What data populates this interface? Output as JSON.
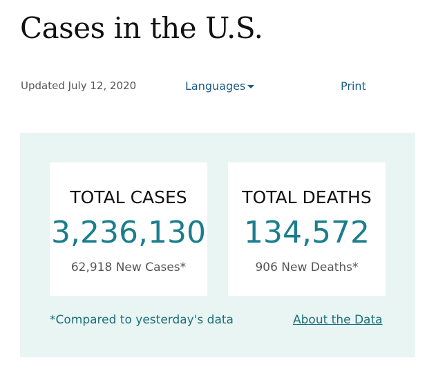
{
  "header": {
    "title": "Cases in the U.S.",
    "updated": "Updated July 12, 2020",
    "languages": "Languages",
    "print": "Print"
  },
  "cards": [
    {
      "label": "TOTAL CASES",
      "value": "3,236,130",
      "new": "62,918 New Cases*"
    },
    {
      "label": "TOTAL DEATHS",
      "value": "134,572",
      "new": "906 New Deaths*"
    }
  ],
  "footnote": "*Compared to yesterday's data",
  "link": "About the Data"
}
